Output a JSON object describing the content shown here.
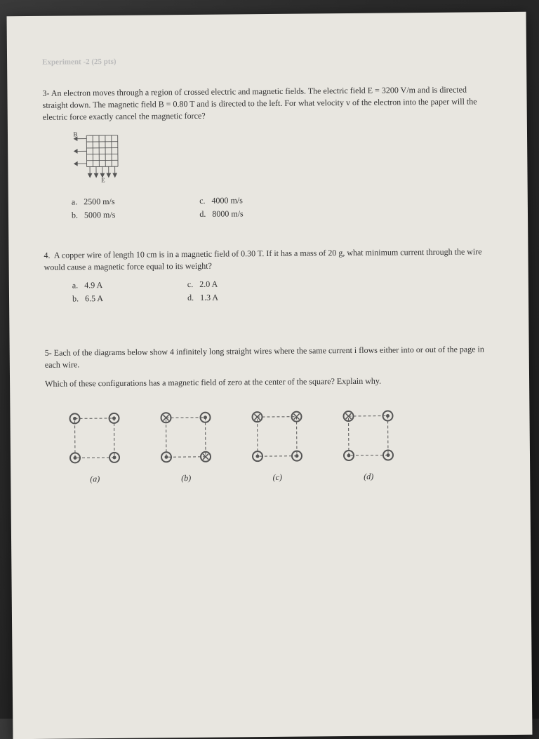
{
  "faint_header": "Experiment -2 (25 pts)",
  "q3": {
    "number": "3-",
    "text": "An electron moves through a region of crossed electric and magnetic fields. The electric field E = 3200 V/m and is directed straight down. The magnetic field B = 0.80 T and is directed to the left. For what velocity v of the electron into the paper will the electric force exactly cancel the magnetic force?",
    "diagram": {
      "B_label": "B",
      "E_label": "E"
    },
    "options": {
      "a": "2500 m/s",
      "b": "5000 m/s",
      "c": "4000 m/s",
      "d": "8000 m/s"
    }
  },
  "q4": {
    "number": "4.",
    "text": "A copper wire of length 10 cm is in a magnetic field of 0.30 T. If it has a mass of 20 g, what minimum current through the wire would cause a magnetic force equal to its weight?",
    "options": {
      "a": "4.9 A",
      "b": "6.5 A",
      "c": "2.0 A",
      "d": "1.3 A"
    }
  },
  "q5": {
    "number": "5-",
    "text1": "Each of the diagrams below show 4 infinitely long straight wires where the same current i flows either into or out of the page in each wire.",
    "text2": "Which of these configurations has a magnetic field of zero at the center of the square? Explain why.",
    "labels": {
      "a": "(a)",
      "b": "(b)",
      "c": "(c)",
      "d": "(d)"
    },
    "configs": {
      "a": {
        "tl": "out",
        "tr": "out",
        "bl": "out",
        "br": "out"
      },
      "b": {
        "tl": "in",
        "tr": "out",
        "bl": "out",
        "br": "in"
      },
      "c": {
        "tl": "in",
        "tr": "in",
        "bl": "out",
        "br": "out"
      },
      "d": {
        "tl": "in",
        "tr": "out",
        "bl": "out",
        "br": "out"
      }
    }
  },
  "labels": {
    "a": "a.",
    "b": "b.",
    "c": "c.",
    "d": "d."
  },
  "colors": {
    "paper": "#e8e6e0",
    "text": "#333333",
    "faint": "#bbbbbb",
    "stroke": "#555555"
  }
}
